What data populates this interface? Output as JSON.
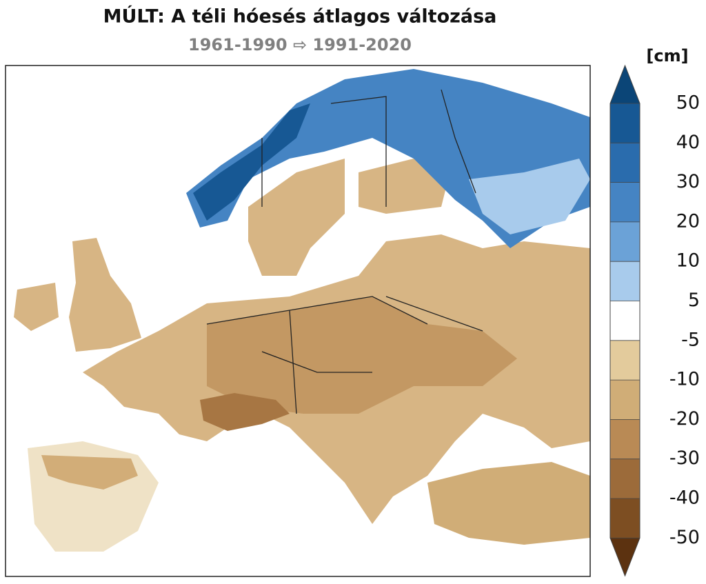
{
  "title": "MÚLT: A téli hóesés átlagos változása",
  "subtitle": "1961-1990 ⇨ 1991-2020",
  "colorbar": {
    "unit": "[cm]",
    "ticks": [
      50,
      40,
      30,
      20,
      10,
      5,
      -5,
      -10,
      -20,
      -30,
      -40,
      -50
    ],
    "colors": [
      "#0b4577",
      "#175894",
      "#2a6cad",
      "#4584c3",
      "#6ba2d7",
      "#a8cbec",
      "#ffffff",
      "#e3cb9c",
      "#d0ad77",
      "#b98a55",
      "#9c6b3a",
      "#7d4e22",
      "#5c3210"
    ]
  }
}
